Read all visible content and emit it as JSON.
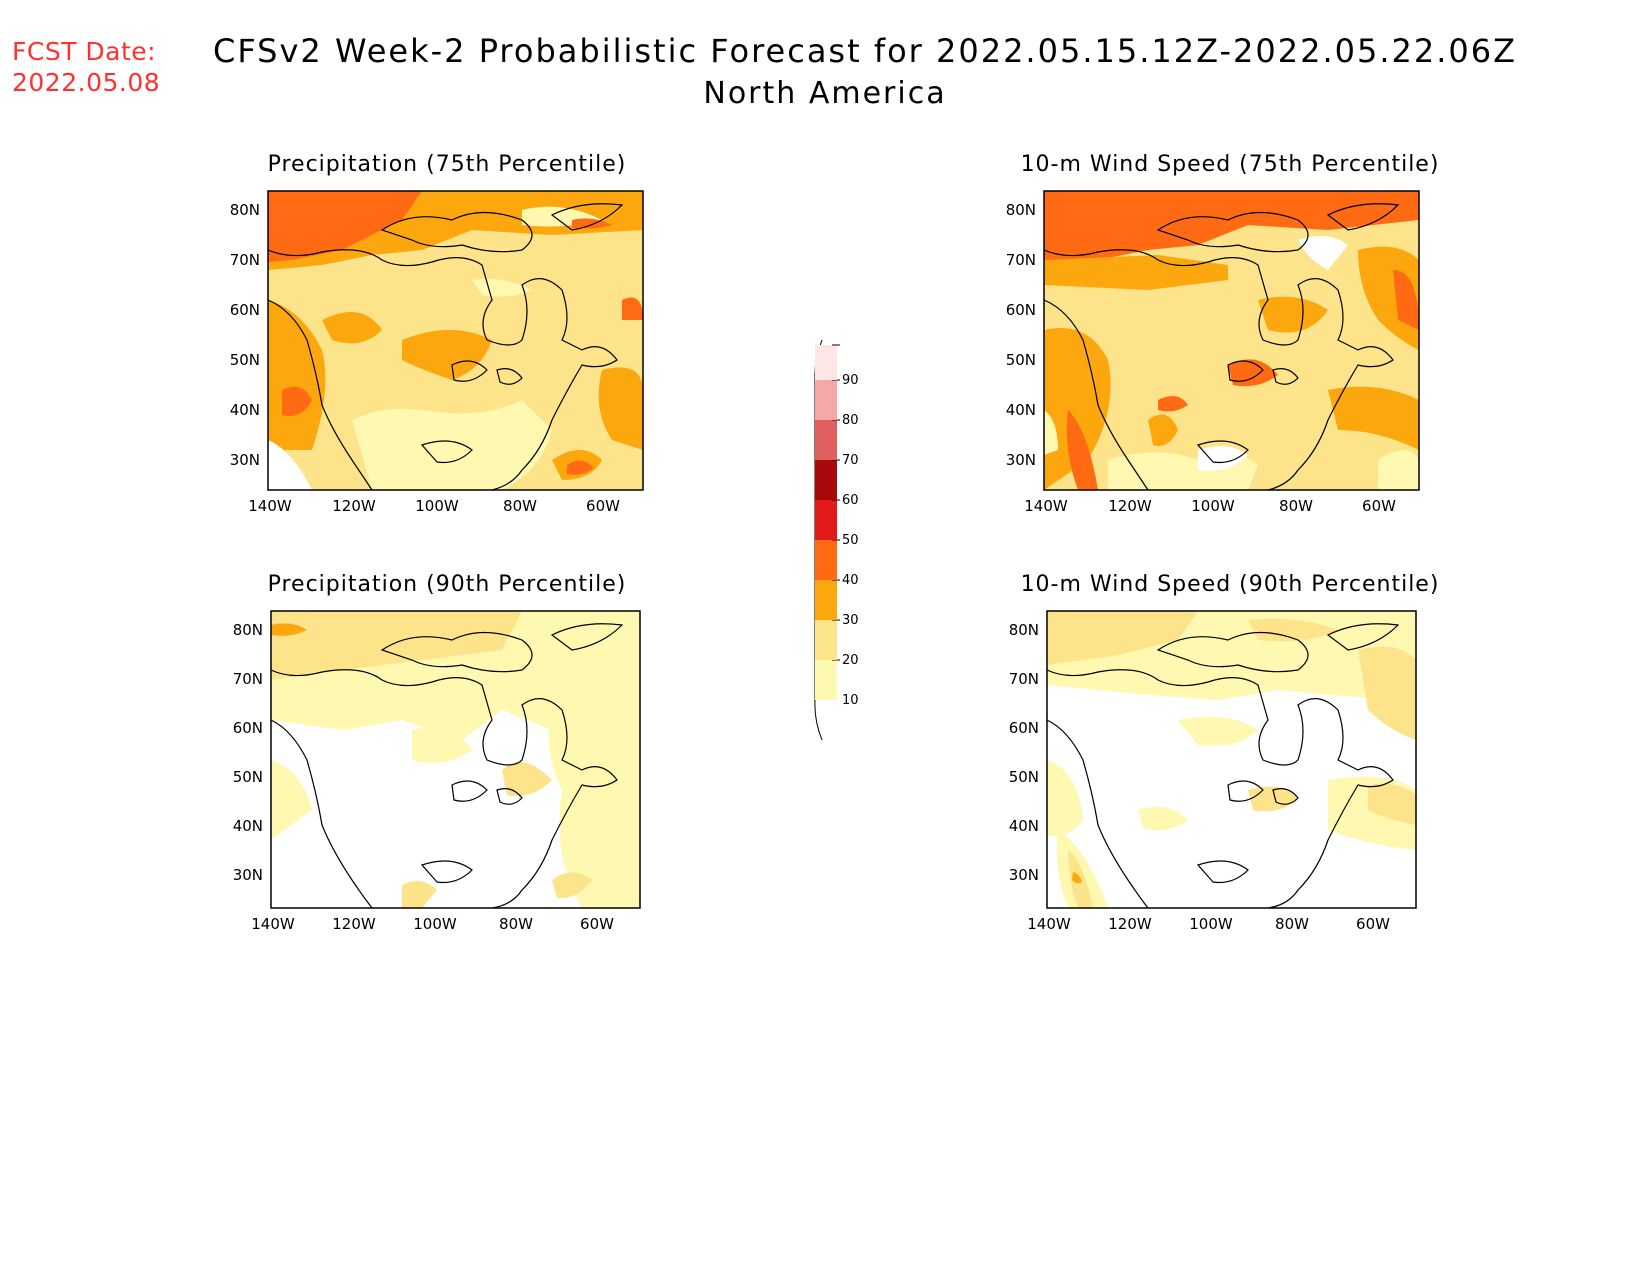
{
  "header": {
    "fcst_label": "FCST Date:",
    "fcst_date": "2022.05.08",
    "title": "CFSv2 Week-2 Probabilistic Forecast for 2022.05.15.12Z-2022.05.22.06Z",
    "subtitle": "North America"
  },
  "panels": [
    {
      "id": "p75",
      "title": "Precipitation (75th Percentile)"
    },
    {
      "id": "p90",
      "title": "Precipitation (90th Percentile)"
    },
    {
      "id": "w75",
      "title": "10-m Wind Speed (75th Percentile)"
    },
    {
      "id": "w90",
      "title": "10-m Wind Speed (90th Percentile)"
    }
  ],
  "axes": {
    "lat_labels": [
      "80N",
      "70N",
      "60N",
      "50N",
      "40N",
      "30N"
    ],
    "lon_labels": [
      "140W",
      "120W",
      "100W",
      "80W",
      "60W"
    ]
  },
  "colorbar": {
    "labels": [
      "90",
      "80",
      "70",
      "60",
      "50",
      "40",
      "30",
      "20",
      "10"
    ],
    "colors": {
      "c10": "#fff8b0",
      "c20": "#fde38a",
      "c30": "#fba70d",
      "c40": "#ff6a12",
      "c50": "#e31a1a",
      "c60": "#a80a0a",
      "c70": "#e06060",
      "c80": "#f4a8a8",
      "c90": "#fde6e6"
    }
  }
}
